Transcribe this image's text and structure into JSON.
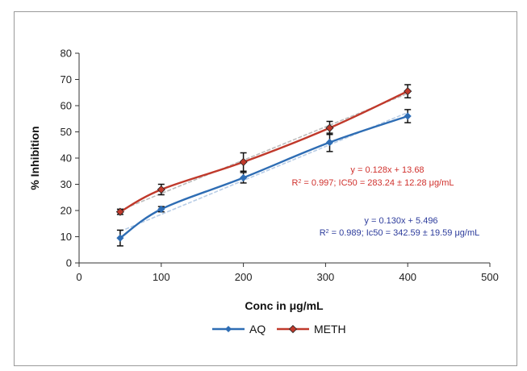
{
  "chart_data": {
    "type": "line",
    "xlabel": "Conc in μg/mL",
    "ylabel": "% Inhibition",
    "xlim": [
      0,
      500
    ],
    "ylim": [
      0,
      80
    ],
    "xticks": [
      "0",
      "100",
      "200",
      "300",
      "400",
      "500"
    ],
    "yticks": [
      "0",
      "10",
      "20",
      "30",
      "40",
      "50",
      "60",
      "70",
      "80"
    ],
    "legend_position": "bottom",
    "series": [
      {
        "name": "AQ",
        "color": "#2e6db4",
        "x": [
          50,
          100,
          200,
          305,
          400
        ],
        "y": [
          9.5,
          20.5,
          32.5,
          46.0,
          56.0
        ],
        "err": [
          3.0,
          1.0,
          2.0,
          3.5,
          2.5
        ],
        "trend_color": "#b8cde6"
      },
      {
        "name": "METH",
        "color": "#c0392b",
        "x": [
          50,
          100,
          200,
          305,
          400
        ],
        "y": [
          19.5,
          28.0,
          38.5,
          51.5,
          65.5
        ],
        "err": [
          1.0,
          2.0,
          3.5,
          2.5,
          2.5
        ],
        "trend_color": "#bdbdbd"
      }
    ],
    "annotations": [
      {
        "line1": "y = 0.128x + 13.68",
        "line2_prefix": "R",
        "line2_sup": "2",
        "line2_rest": " = 0.997; IC50 = 283.24 ± 12.28 μg/mL",
        "color": "#d0312d"
      },
      {
        "line1": "y = 0.130x + 5.496",
        "line2_prefix": "R",
        "line2_sup": "2",
        "line2_rest": " = 0.989; Ic50 = 342.59 ± 19.59 μg/mL",
        "color": "#2d3c9c"
      }
    ]
  }
}
